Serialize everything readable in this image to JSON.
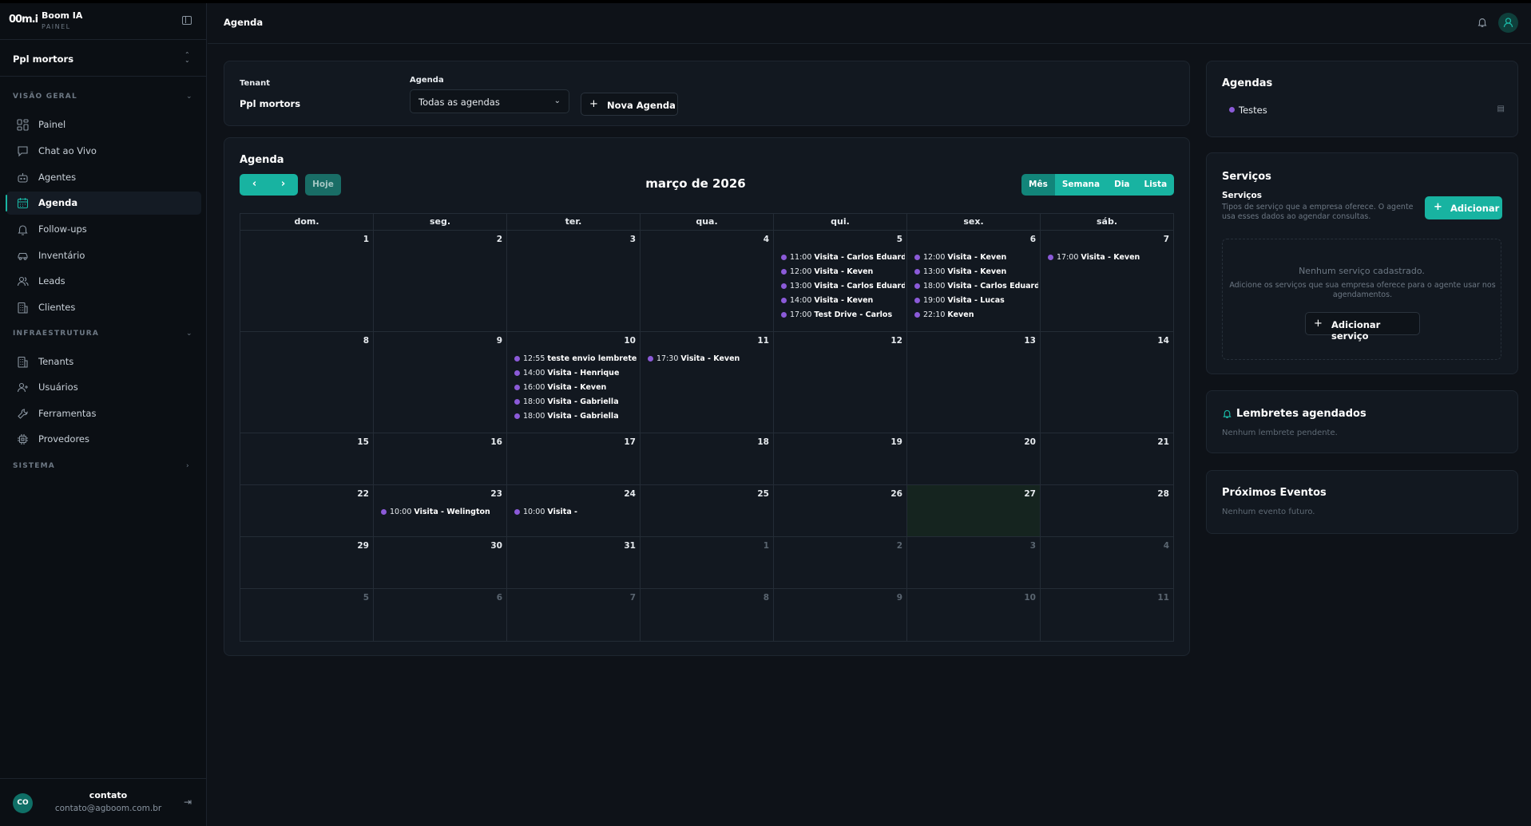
{
  "brand": {
    "logo": "00m.i",
    "name": "Boom IA",
    "sub": "PAINEL"
  },
  "sidebar": {
    "tenant": "Ppl mortors",
    "sections": {
      "overview": "VISÃO GERAL",
      "infra": "INFRAESTRUTURA",
      "system": "SISTEMA"
    },
    "items": [
      {
        "label": "Painel",
        "icon": "grid-icon"
      },
      {
        "label": "Chat ao Vivo",
        "icon": "chat-icon"
      },
      {
        "label": "Agentes",
        "icon": "bot-icon"
      },
      {
        "label": "Agenda",
        "icon": "calendar-icon",
        "active": true
      },
      {
        "label": "Follow-ups",
        "icon": "bell-icon"
      },
      {
        "label": "Inventário",
        "icon": "car-icon"
      },
      {
        "label": "Leads",
        "icon": "users-icon"
      },
      {
        "label": "Clientes",
        "icon": "building-icon"
      },
      {
        "label": "Tenants",
        "icon": "building-icon"
      },
      {
        "label": "Usuários",
        "icon": "user-plus-icon"
      },
      {
        "label": "Ferramentas",
        "icon": "wrench-icon"
      },
      {
        "label": "Provedores",
        "icon": "cpu-icon"
      }
    ],
    "user": {
      "initials": "CO",
      "name": "contato",
      "email": "contato@agboom.com.br"
    }
  },
  "header": {
    "title": "Agenda"
  },
  "filters": {
    "tenant_label": "Tenant",
    "tenant_value": "Ppl mortors",
    "agenda_label": "Agenda",
    "agenda_value": "Todas as agendas",
    "new_agenda": "Nova Agenda"
  },
  "calendar": {
    "title": "Agenda",
    "today_label": "Hoje",
    "month_title": "março de 2026",
    "views": [
      "Mês",
      "Semana",
      "Dia",
      "Lista"
    ],
    "weekdays": [
      "dom.",
      "seg.",
      "ter.",
      "qua.",
      "qui.",
      "sex.",
      "sáb."
    ],
    "weeks": [
      [
        {
          "n": "1",
          "ev": []
        },
        {
          "n": "2",
          "ev": []
        },
        {
          "n": "3",
          "ev": []
        },
        {
          "n": "4",
          "ev": []
        },
        {
          "n": "5",
          "ev": [
            {
              "t": "11:00",
              "title": "Visita - Carlos Eduardo"
            },
            {
              "t": "12:00",
              "title": "Visita - Keven"
            },
            {
              "t": "13:00",
              "title": "Visita - Carlos Eduardo"
            },
            {
              "t": "14:00",
              "title": "Visita - Keven"
            },
            {
              "t": "17:00",
              "title": "Test Drive - Carlos"
            }
          ]
        },
        {
          "n": "6",
          "ev": [
            {
              "t": "12:00",
              "title": "Visita - Keven"
            },
            {
              "t": "13:00",
              "title": "Visita - Keven"
            },
            {
              "t": "18:00",
              "title": "Visita - Carlos Eduardo"
            },
            {
              "t": "19:00",
              "title": "Visita - Lucas"
            },
            {
              "t": "22:10",
              "title": "Keven"
            }
          ]
        },
        {
          "n": "7",
          "ev": [
            {
              "t": "17:00",
              "title": "Visita - Keven"
            }
          ]
        }
      ],
      [
        {
          "n": "8",
          "ev": []
        },
        {
          "n": "9",
          "ev": []
        },
        {
          "n": "10",
          "ev": [
            {
              "t": "12:55",
              "title": "teste envio lembrete"
            },
            {
              "t": "14:00",
              "title": "Visita - Henrique"
            },
            {
              "t": "16:00",
              "title": "Visita - Keven"
            },
            {
              "t": "18:00",
              "title": "Visita - Gabriella"
            },
            {
              "t": "18:00",
              "title": "Visita - Gabriella"
            }
          ]
        },
        {
          "n": "11",
          "ev": [
            {
              "t": "17:30",
              "title": "Visita - Keven"
            }
          ]
        },
        {
          "n": "12",
          "ev": []
        },
        {
          "n": "13",
          "ev": []
        },
        {
          "n": "14",
          "ev": []
        }
      ],
      [
        {
          "n": "15",
          "ev": []
        },
        {
          "n": "16",
          "ev": []
        },
        {
          "n": "17",
          "ev": []
        },
        {
          "n": "18",
          "ev": []
        },
        {
          "n": "19",
          "ev": []
        },
        {
          "n": "20",
          "ev": []
        },
        {
          "n": "21",
          "ev": []
        }
      ],
      [
        {
          "n": "22",
          "ev": []
        },
        {
          "n": "23",
          "ev": [
            {
              "t": "10:00",
              "title": "Visita - Welington"
            }
          ]
        },
        {
          "n": "24",
          "ev": [
            {
              "t": "10:00",
              "title": "Visita -"
            }
          ]
        },
        {
          "n": "25",
          "ev": []
        },
        {
          "n": "26",
          "ev": []
        },
        {
          "n": "27",
          "ev": [],
          "today": true
        },
        {
          "n": "28",
          "ev": []
        }
      ],
      [
        {
          "n": "29",
          "ev": []
        },
        {
          "n": "30",
          "ev": []
        },
        {
          "n": "31",
          "ev": []
        },
        {
          "n": "1",
          "ev": [],
          "other": true
        },
        {
          "n": "2",
          "ev": [],
          "other": true
        },
        {
          "n": "3",
          "ev": [],
          "other": true
        },
        {
          "n": "4",
          "ev": [],
          "other": true
        }
      ],
      [
        {
          "n": "5",
          "ev": [],
          "other": true
        },
        {
          "n": "6",
          "ev": [],
          "other": true
        },
        {
          "n": "7",
          "ev": [],
          "other": true
        },
        {
          "n": "8",
          "ev": [],
          "other": true
        },
        {
          "n": "9",
          "ev": [],
          "other": true
        },
        {
          "n": "10",
          "ev": [],
          "other": true
        },
        {
          "n": "11",
          "ev": [],
          "other": true
        }
      ]
    ]
  },
  "agendas_panel": {
    "title": "Agendas",
    "items": [
      "Testes"
    ]
  },
  "services_panel": {
    "title": "Serviços",
    "subtitle": "Serviços",
    "description": "Tipos de serviço que a empresa oferece. O agente usa esses dados ao agendar consultas.",
    "add_button": "Adicionar",
    "empty_title": "Nenhum serviço cadastrado.",
    "empty_desc": "Adicione os serviços que sua empresa oferece para o agente usar nos agendamentos.",
    "add_service_button": "Adicionar serviço"
  },
  "reminders_panel": {
    "title": "Lembretes agendados",
    "empty": "Nenhum lembrete pendente."
  },
  "events_panel": {
    "title": "Próximos Eventos",
    "empty": "Nenhum evento futuro."
  },
  "colors": {
    "accent": "#18b3a1",
    "event_dot": "#8b5ad8",
    "background": "#0e1218"
  }
}
